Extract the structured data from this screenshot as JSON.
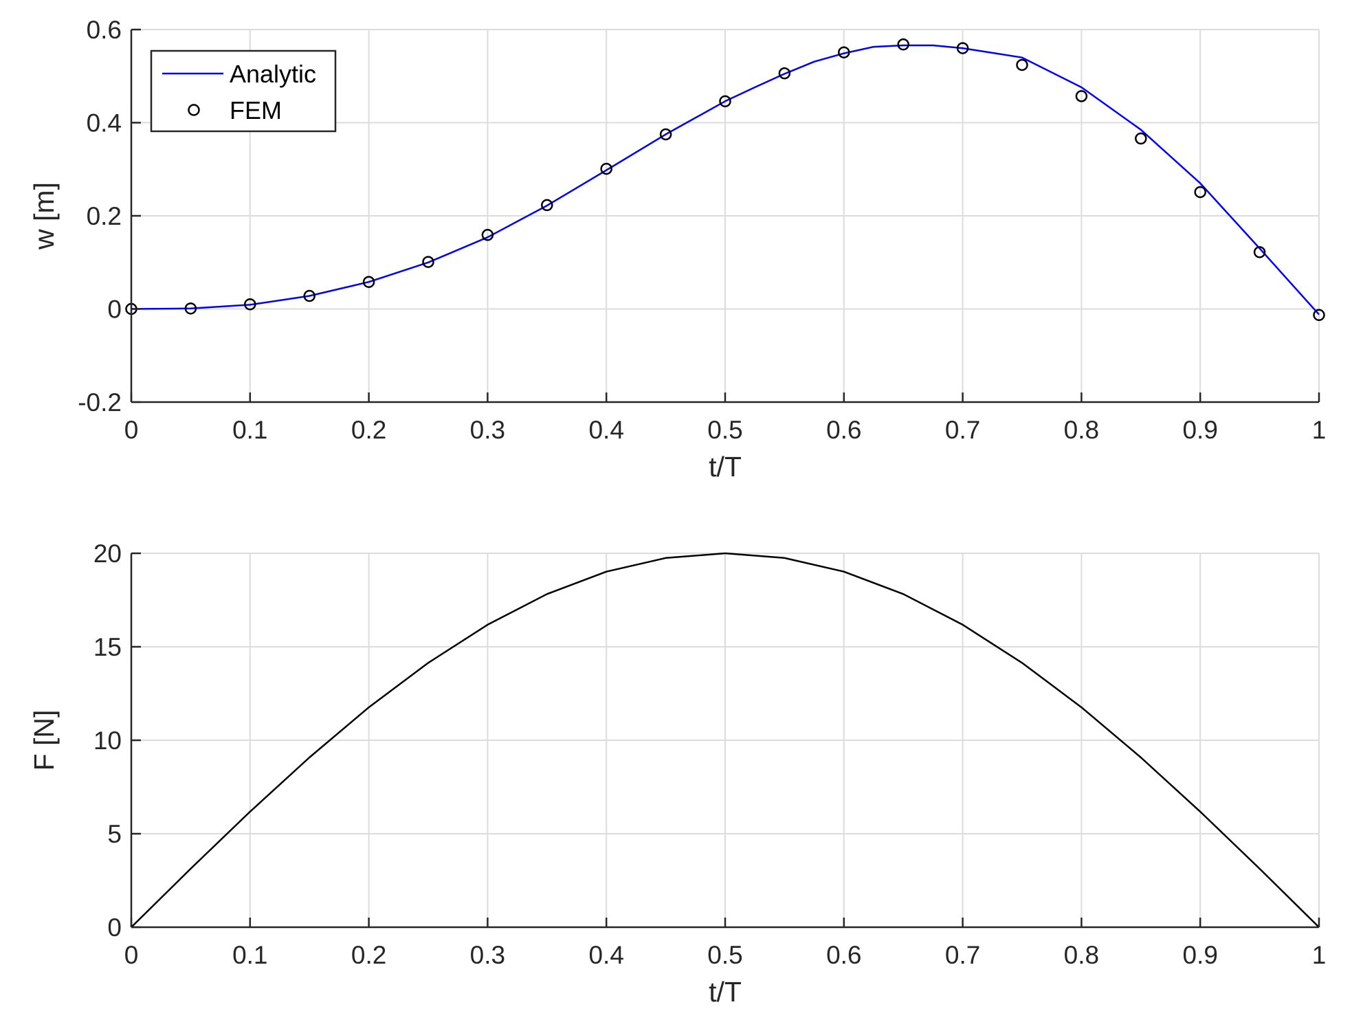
{
  "chart_data": [
    {
      "type": "line",
      "xlabel": "t/T",
      "ylabel": "w [m]",
      "xlim": [
        0,
        1
      ],
      "ylim": [
        -0.2,
        0.6
      ],
      "xticks": [
        0,
        0.1,
        0.2,
        0.3,
        0.4,
        0.5,
        0.6,
        0.7,
        0.8,
        0.9,
        1
      ],
      "xtick_labels": [
        "0",
        "0.1",
        "0.2",
        "0.3",
        "0.4",
        "0.5",
        "0.6",
        "0.7",
        "0.8",
        "0.9",
        "1"
      ],
      "yticks": [
        -0.2,
        0,
        0.2,
        0.4,
        0.6
      ],
      "ytick_labels": [
        "-0.2",
        "0",
        "0.2",
        "0.4",
        "0.6"
      ],
      "grid": true,
      "legend_position": "top-left",
      "series": [
        {
          "name": "Analytic",
          "style": "line",
          "color": "#0000ff",
          "x": [
            0,
            0.05,
            0.1,
            0.15,
            0.2,
            0.25,
            0.3,
            0.35,
            0.4,
            0.45,
            0.5,
            0.525,
            0.55,
            0.575,
            0.6,
            0.625,
            0.65,
            0.675,
            0.7,
            0.725,
            0.75,
            0.8,
            0.85,
            0.9,
            0.95,
            1
          ],
          "y": [
            0,
            0.001,
            0.009,
            0.028,
            0.058,
            0.1,
            0.154,
            0.222,
            0.298,
            0.375,
            0.446,
            0.476,
            0.505,
            0.531,
            0.549,
            0.563,
            0.566,
            0.566,
            0.56,
            0.55,
            0.54,
            0.476,
            0.385,
            0.27,
            0.13,
            -0.012
          ]
        },
        {
          "name": "FEM",
          "style": "markers",
          "marker": "circle",
          "color": "#000000",
          "x": [
            0,
            0.05,
            0.1,
            0.15,
            0.2,
            0.25,
            0.3,
            0.35,
            0.4,
            0.45,
            0.5,
            0.55,
            0.6,
            0.65,
            0.7,
            0.75,
            0.8,
            0.85,
            0.9,
            0.95,
            1
          ],
          "y": [
            0,
            0.001,
            0.01,
            0.028,
            0.058,
            0.101,
            0.159,
            0.223,
            0.301,
            0.375,
            0.446,
            0.506,
            0.551,
            0.568,
            0.56,
            0.524,
            0.457,
            0.366,
            0.251,
            0.122,
            -0.013
          ]
        }
      ]
    },
    {
      "type": "line",
      "xlabel": "t/T",
      "ylabel": "F [N]",
      "xlim": [
        0,
        1
      ],
      "ylim": [
        0,
        20
      ],
      "xticks": [
        0,
        0.1,
        0.2,
        0.3,
        0.4,
        0.5,
        0.6,
        0.7,
        0.8,
        0.9,
        1
      ],
      "xtick_labels": [
        "0",
        "0.1",
        "0.2",
        "0.3",
        "0.4",
        "0.5",
        "0.6",
        "0.7",
        "0.8",
        "0.9",
        "1"
      ],
      "yticks": [
        0,
        5,
        10,
        15,
        20
      ],
      "ytick_labels": [
        "0",
        "5",
        "10",
        "15",
        "20"
      ],
      "grid": true,
      "series": [
        {
          "style": "line",
          "color": "#000000",
          "x": [
            0,
            0.05,
            0.1,
            0.15,
            0.2,
            0.25,
            0.3,
            0.35,
            0.4,
            0.45,
            0.5,
            0.55,
            0.6,
            0.65,
            0.7,
            0.75,
            0.8,
            0.85,
            0.9,
            0.95,
            1
          ],
          "y": [
            0,
            3.13,
            6.18,
            9.08,
            11.76,
            14.14,
            16.18,
            17.82,
            19.02,
            19.75,
            20,
            19.75,
            19.02,
            17.82,
            16.18,
            14.14,
            11.76,
            9.08,
            6.18,
            3.13,
            0
          ]
        }
      ]
    }
  ],
  "legend": {
    "items": [
      {
        "label": "Analytic",
        "symbol": "line",
        "color": "#0000ff"
      },
      {
        "label": "FEM",
        "symbol": "circle",
        "color": "#000000"
      }
    ]
  }
}
